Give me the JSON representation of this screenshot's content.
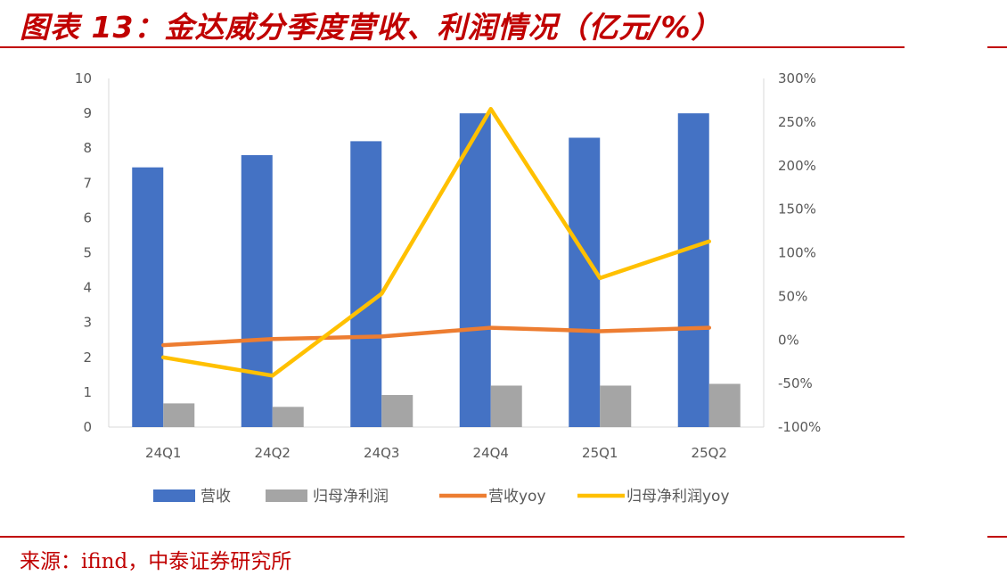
{
  "header": {
    "title": "图表 13：金达威分季度营收、利润情况（亿元/%）"
  },
  "footer": {
    "source": "来源：ifind，中泰证券研究所"
  },
  "colors": {
    "accent": "#c00000",
    "revenue": "#4472c4",
    "net_profit": "#a5a5a5",
    "revenue_yoy": "#ed7d31",
    "net_profit_yoy": "#ffc000"
  },
  "chart_data": {
    "type": "bar",
    "categories": [
      "24Q1",
      "24Q2",
      "24Q3",
      "24Q4",
      "25Q1",
      "25Q2"
    ],
    "series": [
      {
        "name": "营收",
        "type": "bar",
        "axis": "left",
        "values": [
          7.45,
          7.8,
          8.2,
          9.0,
          8.3,
          9.0
        ]
      },
      {
        "name": "归母净利润",
        "type": "bar",
        "axis": "left",
        "values": [
          0.68,
          0.58,
          0.92,
          1.19,
          1.19,
          1.24
        ]
      },
      {
        "name": "营收yoy",
        "type": "line",
        "axis": "right",
        "values": [
          -6,
          1,
          4,
          14,
          10,
          14
        ]
      },
      {
        "name": "归母净利润yoy",
        "type": "line",
        "axis": "right",
        "values": [
          -20,
          -41,
          53,
          265,
          71,
          113
        ]
      }
    ],
    "left_axis": {
      "ylim": [
        0,
        10
      ],
      "ticks": [
        "0",
        "1",
        "2",
        "3",
        "4",
        "5",
        "6",
        "7",
        "8",
        "9",
        "10"
      ]
    },
    "right_axis": {
      "ylim": [
        -100,
        300
      ],
      "ticks": [
        "-100%",
        "-50%",
        "0%",
        "50%",
        "100%",
        "150%",
        "200%",
        "250%",
        "300%"
      ]
    },
    "grid": false,
    "legend_position": "bottom",
    "legend": [
      "营收",
      "归母净利润",
      "营收yoy",
      "归母净利润yoy"
    ]
  }
}
